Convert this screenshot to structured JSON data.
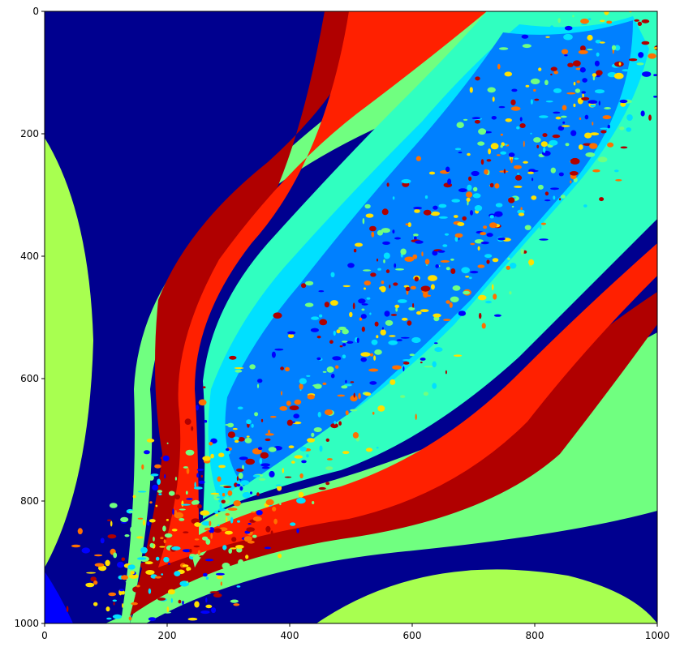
{
  "chart_data": {
    "type": "heatmap",
    "title": "",
    "xlabel": "",
    "ylabel": "",
    "xlim": [
      0,
      1000
    ],
    "ylim": [
      1000,
      0
    ],
    "y_axis_inverted": true,
    "grid": false,
    "legend": "none",
    "colormap": "jet",
    "x_ticks": [
      0,
      200,
      400,
      600,
      800,
      1000
    ],
    "y_ticks": [
      0,
      200,
      400,
      600,
      800,
      1000
    ],
    "x_tick_labels": [
      "0",
      "200",
      "400",
      "600",
      "800",
      "1000"
    ],
    "y_tick_labels": [
      "0",
      "200",
      "400",
      "600",
      "800",
      "1000"
    ],
    "description_colors": {
      "dark_blue": "#00008f",
      "blue": "#0000ff",
      "azure": "#0080ff",
      "cyan": "#00e0ff",
      "aquamarine": "#30ffc0",
      "green": "#70ff80",
      "yellow_green": "#a8ff50",
      "yellow": "#ffe000",
      "orange": "#ff7000",
      "red": "#ff2000",
      "dark_red": "#b00000"
    }
  }
}
